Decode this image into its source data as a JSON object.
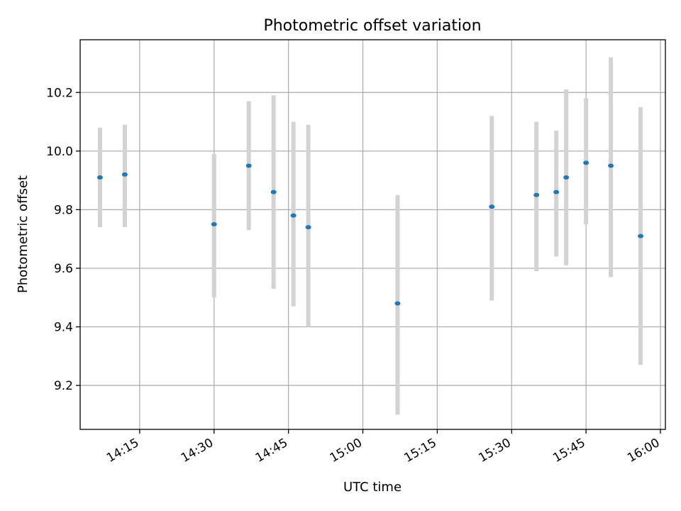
{
  "chart_data": {
    "type": "scatter",
    "title": "Photometric offset variation",
    "xlabel": "UTC time",
    "ylabel": "Photometric offset",
    "xlim": [
      "14:03",
      "16:01"
    ],
    "ylim": [
      9.05,
      10.38
    ],
    "xticks": [
      "14:15",
      "14:30",
      "14:45",
      "15:00",
      "15:15",
      "15:30",
      "15:45",
      "16:00"
    ],
    "yticks": [
      "9.2",
      "9.4",
      "9.6",
      "9.8",
      "10.0",
      "10.2"
    ],
    "grid": true,
    "colors": {
      "marker": "#1f77b4",
      "errorbar": "#d3d3d3",
      "grid": "#b0b0b0"
    },
    "points": [
      {
        "time": "14:07",
        "y": 9.91,
        "ylow": 9.74,
        "yhigh": 10.08
      },
      {
        "time": "14:12",
        "y": 9.92,
        "ylow": 9.74,
        "yhigh": 10.09
      },
      {
        "time": "14:30",
        "y": 9.75,
        "ylow": 9.5,
        "yhigh": 9.99
      },
      {
        "time": "14:37",
        "y": 9.95,
        "ylow": 9.73,
        "yhigh": 10.17
      },
      {
        "time": "14:42",
        "y": 9.86,
        "ylow": 9.53,
        "yhigh": 10.19
      },
      {
        "time": "14:46",
        "y": 9.78,
        "ylow": 9.47,
        "yhigh": 10.1
      },
      {
        "time": "14:49",
        "y": 9.74,
        "ylow": 9.4,
        "yhigh": 10.09
      },
      {
        "time": "15:07",
        "y": 9.48,
        "ylow": 9.1,
        "yhigh": 9.85
      },
      {
        "time": "15:26",
        "y": 9.81,
        "ylow": 9.49,
        "yhigh": 10.12
      },
      {
        "time": "15:35",
        "y": 9.85,
        "ylow": 9.59,
        "yhigh": 10.1
      },
      {
        "time": "15:39",
        "y": 9.86,
        "ylow": 9.64,
        "yhigh": 10.07
      },
      {
        "time": "15:41",
        "y": 9.91,
        "ylow": 9.61,
        "yhigh": 10.21
      },
      {
        "time": "15:45",
        "y": 9.96,
        "ylow": 9.75,
        "yhigh": 10.18
      },
      {
        "time": "15:50",
        "y": 9.95,
        "ylow": 9.57,
        "yhigh": 10.32
      },
      {
        "time": "15:56",
        "y": 9.71,
        "ylow": 9.27,
        "yhigh": 10.15
      }
    ]
  }
}
